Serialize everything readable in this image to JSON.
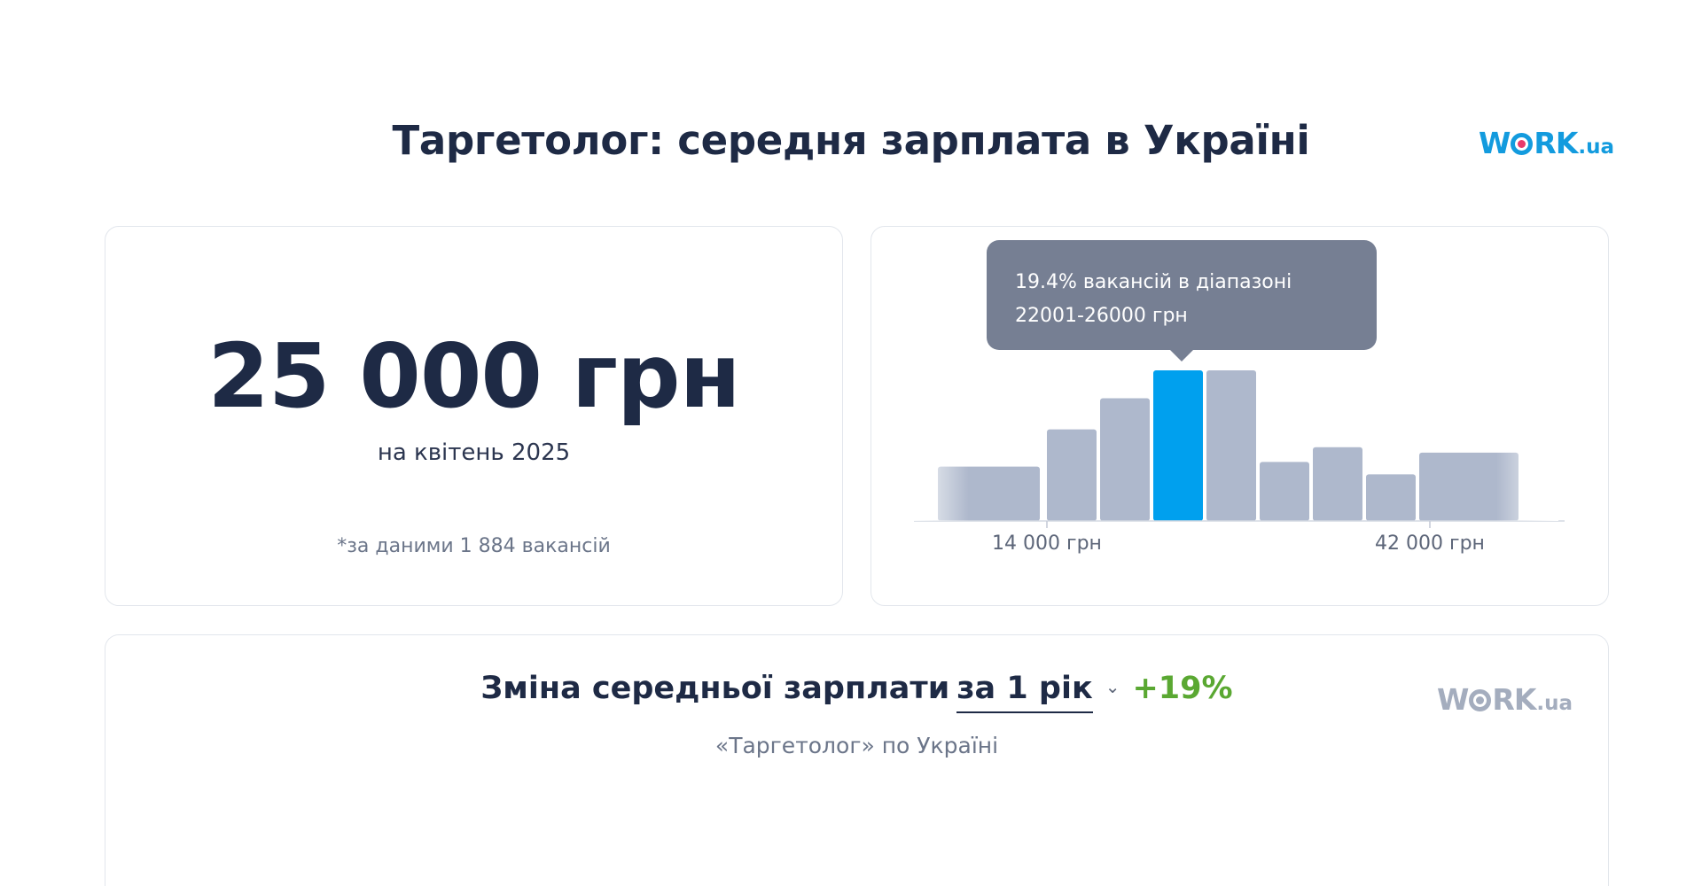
{
  "header": {
    "title": "Таргетолог: середня зарплата в Україні",
    "logo": {
      "word": "WORK",
      "suffix": ".ua"
    }
  },
  "summary": {
    "salary": "25 000 грн",
    "date": "на квітень 2025",
    "note": "*за даними 1 884 вакансій"
  },
  "histogram": {
    "tooltip_line1": "19.4% вакансій в діапазоні",
    "tooltip_line2": "22001-26000 грн",
    "tick_left": "14 000 грн",
    "tick_right": "42 000 грн"
  },
  "chart_data": {
    "type": "bar",
    "title": "",
    "values": [
      7.0,
      11.8,
      15.8,
      19.4,
      19.4,
      7.6,
      9.5,
      6.0,
      8.8
    ],
    "highlight_index": 3,
    "highlight_range": "22001-26000 грн",
    "x_ticks": [
      "14 000 грн",
      "42 000 грн"
    ],
    "colors": {
      "bar": "#aeb8cc",
      "highlight": "#00a0ee"
    }
  },
  "change": {
    "label": "Зміна середньої зарплати",
    "period": "за 1 рік",
    "delta": "+19%",
    "subtitle": "«Таргетолог» по Україні",
    "logo": {
      "word": "WORK",
      "suffix": ".ua"
    }
  },
  "colors": {
    "accent": "#139bde",
    "positive": "#5aa832",
    "text": "#1e2a45"
  }
}
